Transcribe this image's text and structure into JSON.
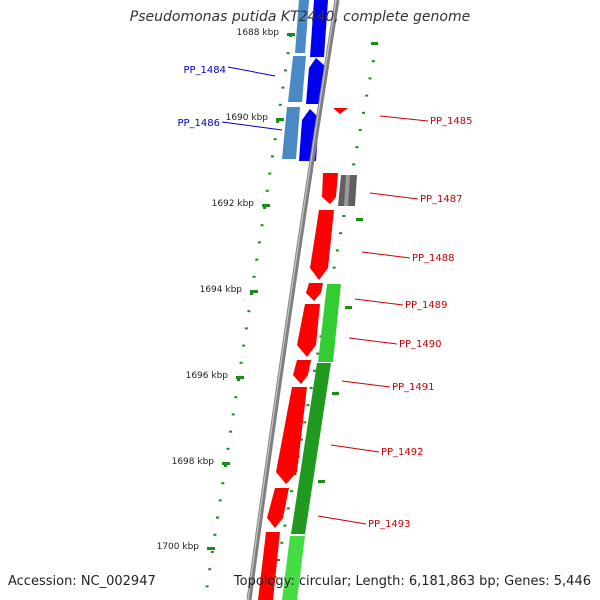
{
  "title": "Pseudomonas putida KT2440, complete genome",
  "footer": {
    "accession": "Accession: NC_002947",
    "stats": "Topology: circular; Length: 6,181,863 bp; Genes: 5,446"
  },
  "colors": {
    "backbone": "#7f7f7f",
    "reverse_strand_gene": "#ff0000",
    "forward_strand_gene": "#0000ee",
    "rna_gene": "#4a8ac4",
    "cds": "#33cc33",
    "other_feature": "#606060",
    "tick": "#1a8c1a",
    "label_forward": "#0000cc",
    "label_reverse": "#cc0000"
  },
  "ticks": [
    {
      "label": "1688 kbp"
    },
    {
      "label": "1690 kbp"
    },
    {
      "label": "1692 kbp"
    },
    {
      "label": "1694 kbp"
    },
    {
      "label": "1696 kbp"
    },
    {
      "label": "1698 kbp"
    },
    {
      "label": "1700 kbp"
    }
  ],
  "gene_labels": [
    {
      "text": "PP_1484",
      "strand": "forward"
    },
    {
      "text": "PP_1486",
      "strand": "forward"
    },
    {
      "text": "PP_1485",
      "strand": "reverse"
    },
    {
      "text": "PP_1487",
      "strand": "reverse"
    },
    {
      "text": "PP_1488",
      "strand": "reverse"
    },
    {
      "text": "PP_1489",
      "strand": "reverse"
    },
    {
      "text": "PP_1490",
      "strand": "reverse"
    },
    {
      "text": "PP_1491",
      "strand": "reverse"
    },
    {
      "text": "PP_1492",
      "strand": "reverse"
    },
    {
      "text": "PP_1493",
      "strand": "reverse"
    }
  ]
}
